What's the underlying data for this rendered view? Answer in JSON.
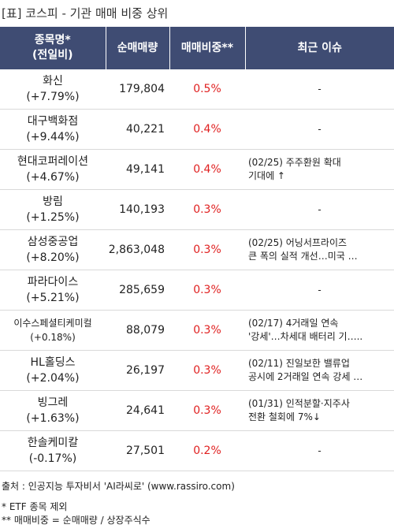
{
  "title": "[표] 코스피 - 기관 매매 비중 상위",
  "header": {
    "col1_line1": "종목명*",
    "col1_line2": "(전일비)",
    "col2": "순매매량",
    "col3": "매매비중**",
    "col4": "최근 이슈"
  },
  "rows": [
    {
      "name": "화신",
      "change": "(+7.79%)",
      "volume": "179,804",
      "ratio": "0.5%",
      "issue1": "-",
      "issue2": ""
    },
    {
      "name": "대구백화점",
      "change": "(+9.44%)",
      "volume": "40,221",
      "ratio": "0.4%",
      "issue1": "-",
      "issue2": ""
    },
    {
      "name": "현대코퍼레이션",
      "change": "(+4.67%)",
      "volume": "49,141",
      "ratio": "0.4%",
      "issue1": "(02/25) 주주환원 확대",
      "issue2": "기대에 ↑"
    },
    {
      "name": "방림",
      "change": "(+1.25%)",
      "volume": "140,193",
      "ratio": "0.3%",
      "issue1": "-",
      "issue2": ""
    },
    {
      "name": "삼성중공업",
      "change": "(+8.20%)",
      "volume": "2,863,048",
      "ratio": "0.3%",
      "issue1": "(02/25) 어닝서프라이즈",
      "issue2": "큰 폭의 실적 개선…미국 …"
    },
    {
      "name": "파라다이스",
      "change": "(+5.21%)",
      "volume": "285,659",
      "ratio": "0.3%",
      "issue1": "-",
      "issue2": ""
    },
    {
      "name": "이수스페셜티케미컬",
      "change": "(+0.18%)",
      "volume": "88,079",
      "ratio": "0.3%",
      "issue1": "(02/17) 4거래일 연속",
      "issue2": "'강세'…차세대 배터리 기….."
    },
    {
      "name": "HL홀딩스",
      "change": "(+2.04%)",
      "volume": "26,197",
      "ratio": "0.3%",
      "issue1": "(02/11) 진일보한 밸류업",
      "issue2": " 공시에 2거래일 연속 강세 …"
    },
    {
      "name": "빙그레",
      "change": "(+1.63%)",
      "volume": "24,641",
      "ratio": "0.3%",
      "issue1": "(01/31) 인적분할·지주사",
      "issue2": "전환 철회에 7%↓"
    },
    {
      "name": "한솔케미칼",
      "change": "(-0.17%)",
      "volume": "27,501",
      "ratio": "0.2%",
      "issue1": "-",
      "issue2": ""
    }
  ],
  "footer": {
    "source": "출처 : 인공지능 투자비서 'AI라씨로' (www.rassiro.com)",
    "note1": "* ETF 종목 제외",
    "note2": "** 매매비중 = 순매매량 / 상장주식수"
  }
}
